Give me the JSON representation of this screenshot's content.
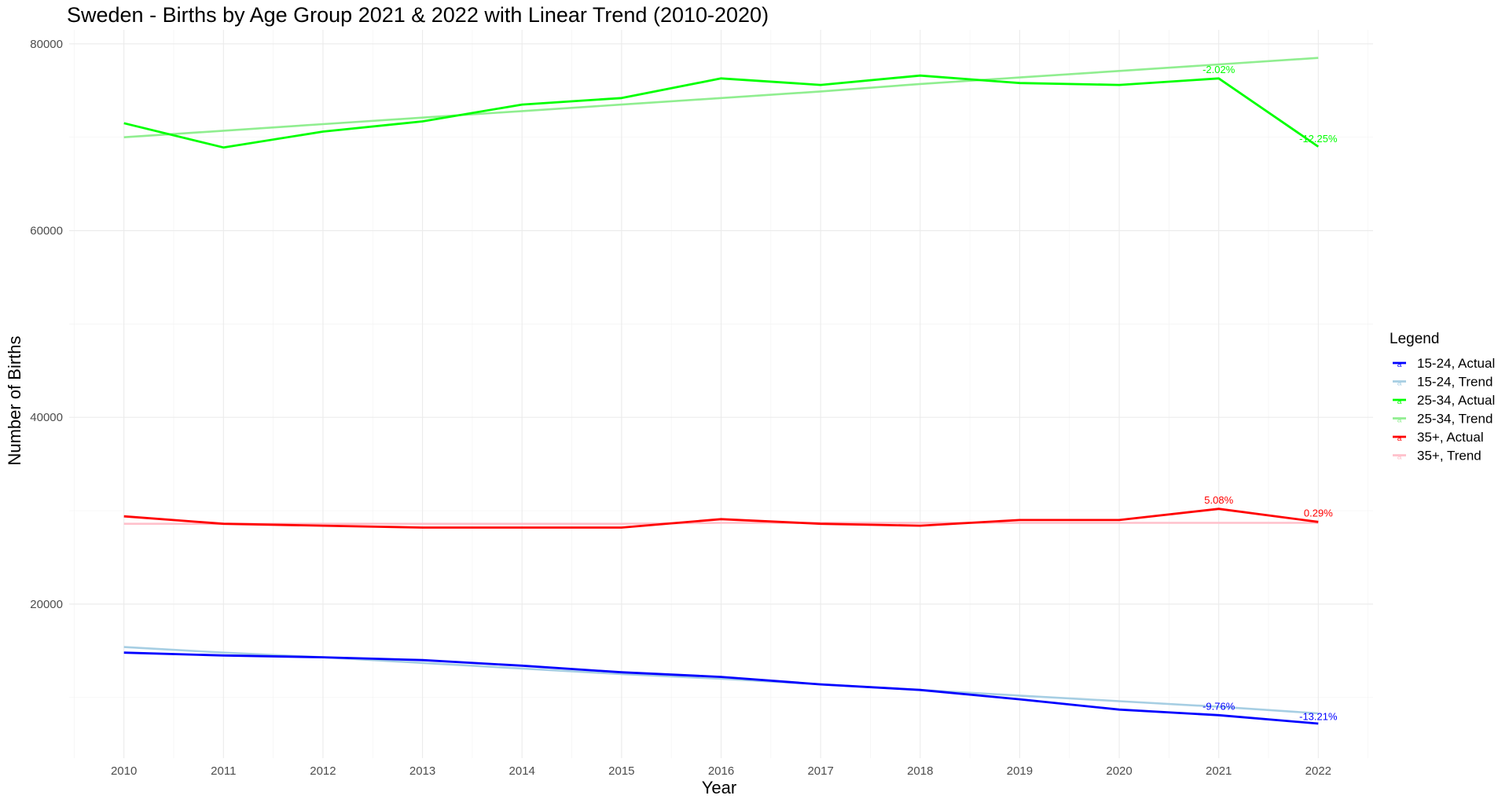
{
  "chart_data": {
    "type": "line",
    "title": "Sweden - Births by Age Group 2021 & 2022 with Linear Trend (2010-2020)",
    "xlabel": "Year",
    "ylabel": "Number of Births",
    "x": [
      2010,
      2011,
      2012,
      2013,
      2014,
      2015,
      2016,
      2017,
      2018,
      2019,
      2020,
      2021,
      2022
    ],
    "xlim": [
      2009.45,
      2022.55
    ],
    "ylim": [
      3500,
      81500
    ],
    "yticks": [
      20000,
      40000,
      60000,
      80000
    ],
    "ytick_labels": [
      "20000",
      "40000",
      "60000",
      "80000"
    ],
    "xtick_labels": [
      "2010",
      "2011",
      "2012",
      "2013",
      "2014",
      "2015",
      "2016",
      "2017",
      "2018",
      "2019",
      "2020",
      "2021",
      "2022"
    ],
    "grid": true,
    "legend": {
      "title": "Legend",
      "position": "right",
      "glyph": "a"
    },
    "series": [
      {
        "name": "15-24, Actual",
        "color": "#0000ff",
        "values": [
          14800,
          14500,
          14300,
          14000,
          13400,
          12700,
          12200,
          11400,
          10800,
          9800,
          8700,
          8100,
          7200
        ]
      },
      {
        "name": "15-24, Trend",
        "color": "#a6cee3",
        "values": [
          15400,
          14800,
          14300,
          13700,
          13100,
          12500,
          12000,
          11400,
          10800,
          10200,
          9600,
          9000,
          8300
        ]
      },
      {
        "name": "25-34, Actual",
        "color": "#00ff00",
        "values": [
          71500,
          68900,
          70600,
          71700,
          73500,
          74200,
          76300,
          75600,
          76600,
          75800,
          75600,
          76300,
          69000
        ]
      },
      {
        "name": "25-34, Trend",
        "color": "#90ee90",
        "values": [
          70000,
          70700,
          71400,
          72100,
          72800,
          73500,
          74200,
          74900,
          75700,
          76400,
          77100,
          77800,
          78500
        ]
      },
      {
        "name": "35+, Actual",
        "color": "#ff0000",
        "values": [
          29400,
          28600,
          28400,
          28200,
          28200,
          28200,
          29100,
          28600,
          28400,
          29000,
          29000,
          30200,
          28800
        ]
      },
      {
        "name": "35+, Trend",
        "color": "#ffc0cb",
        "values": [
          28600,
          28600,
          28600,
          28600,
          28600,
          28600,
          28700,
          28700,
          28700,
          28700,
          28700,
          28700,
          28700
        ]
      }
    ],
    "annotations": [
      {
        "text": "-2.02%",
        "x": 2021,
        "y": 77200,
        "color": "#00ff00"
      },
      {
        "text": "-12.25%",
        "x": 2022,
        "y": 69800,
        "color": "#00ff00"
      },
      {
        "text": "5.08%",
        "x": 2021,
        "y": 31100,
        "color": "#ff0000"
      },
      {
        "text": "0.29%",
        "x": 2022,
        "y": 29700,
        "color": "#ff0000"
      },
      {
        "text": "-9.76%",
        "x": 2021,
        "y": 9000,
        "color": "#0000ff"
      },
      {
        "text": "-13.21%",
        "x": 2022,
        "y": 7900,
        "color": "#0000ff"
      }
    ]
  }
}
